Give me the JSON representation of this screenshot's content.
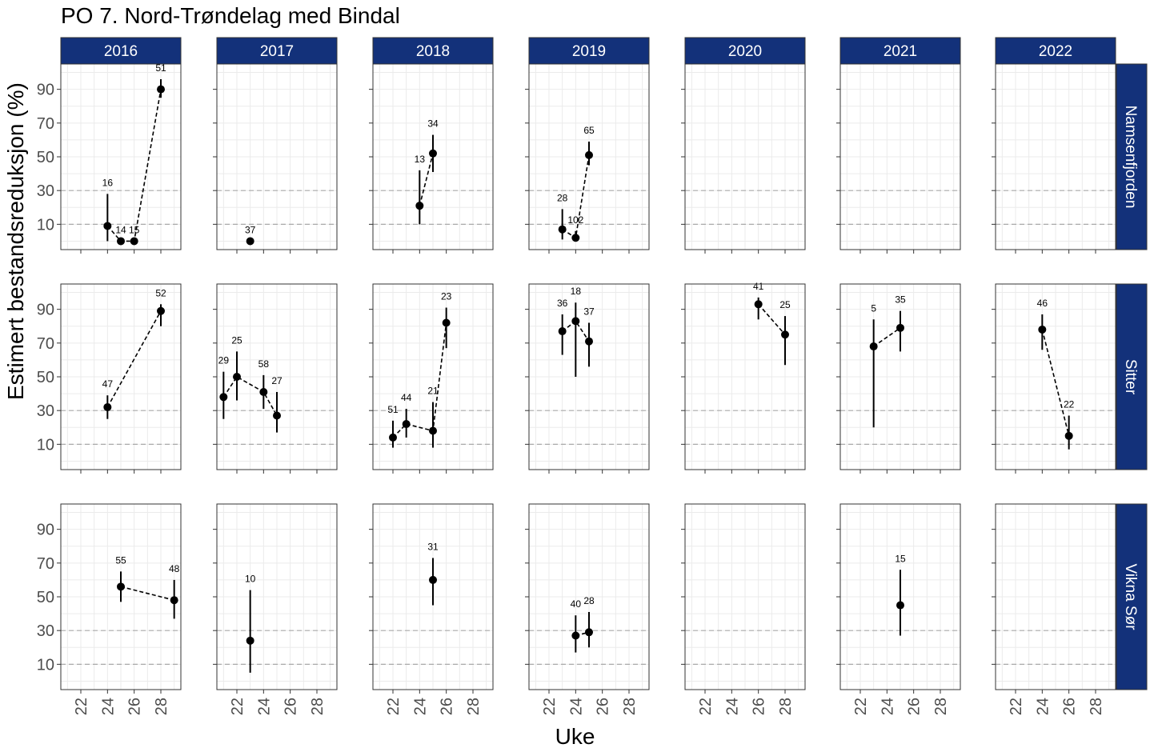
{
  "title": "PO 7. Nord-Trøndelag med Bindal",
  "chart_data": {
    "type": "scatter",
    "title": "PO 7. Nord-Trøndelag med Bindal",
    "xlabel": "Uke",
    "ylabel": "Estimert bestandsreduksjon (%)",
    "x_ticks": [
      22,
      24,
      26,
      28
    ],
    "y_ticks": [
      10,
      30,
      50,
      70,
      90
    ],
    "xlim": [
      20.5,
      29.5
    ],
    "ylim": [
      -5,
      105
    ],
    "reference_lines": [
      10,
      30
    ],
    "grid": true,
    "columns": [
      "2016",
      "2017",
      "2018",
      "2019",
      "2020",
      "2021",
      "2022"
    ],
    "rows": [
      "Namsenfjorden",
      "Sitter",
      "Vikna Sør"
    ],
    "panels": [
      {
        "row": "Namsenfjorden",
        "year": "2016",
        "points": [
          {
            "x": 24,
            "y": 9,
            "lo": 0,
            "hi": 28,
            "n": "16"
          },
          {
            "x": 25,
            "y": 0,
            "lo": 0,
            "hi": 0,
            "n": "14"
          },
          {
            "x": 26,
            "y": 0,
            "lo": 0,
            "hi": 0,
            "n": "15"
          },
          {
            "x": 28,
            "y": 90,
            "lo": 85,
            "hi": 96,
            "n": "51"
          }
        ]
      },
      {
        "row": "Namsenfjorden",
        "year": "2017",
        "points": [
          {
            "x": 23,
            "y": 0,
            "lo": 0,
            "hi": 0,
            "n": "37"
          }
        ]
      },
      {
        "row": "Namsenfjorden",
        "year": "2018",
        "points": [
          {
            "x": 24,
            "y": 21,
            "lo": 10,
            "hi": 42,
            "n": "13"
          },
          {
            "x": 25,
            "y": 52,
            "lo": 41,
            "hi": 63,
            "n": "34"
          }
        ]
      },
      {
        "row": "Namsenfjorden",
        "year": "2019",
        "points": [
          {
            "x": 23,
            "y": 7,
            "lo": 1,
            "hi": 19,
            "n": "28"
          },
          {
            "x": 24,
            "y": 2,
            "lo": 0,
            "hi": 6,
            "n": "102"
          },
          {
            "x": 25,
            "y": 51,
            "lo": 45,
            "hi": 59,
            "n": "65"
          }
        ]
      },
      {
        "row": "Namsenfjorden",
        "year": "2020",
        "points": []
      },
      {
        "row": "Namsenfjorden",
        "year": "2021",
        "points": []
      },
      {
        "row": "Namsenfjorden",
        "year": "2022",
        "points": []
      },
      {
        "row": "Sitter",
        "year": "2016",
        "points": [
          {
            "x": 24,
            "y": 32,
            "lo": 25,
            "hi": 39,
            "n": "47"
          },
          {
            "x": 28,
            "y": 89,
            "lo": 80,
            "hi": 93,
            "n": "52"
          }
        ]
      },
      {
        "row": "Sitter",
        "year": "2017",
        "points": [
          {
            "x": 21,
            "y": 38,
            "lo": 25,
            "hi": 53,
            "n": "29"
          },
          {
            "x": 22,
            "y": 50,
            "lo": 36,
            "hi": 65,
            "n": "25"
          },
          {
            "x": 24,
            "y": 41,
            "lo": 31,
            "hi": 51,
            "n": "58"
          },
          {
            "x": 25,
            "y": 27,
            "lo": 17,
            "hi": 41,
            "n": "27"
          }
        ]
      },
      {
        "row": "Sitter",
        "year": "2018",
        "points": [
          {
            "x": 22,
            "y": 14,
            "lo": 8,
            "hi": 24,
            "n": "51"
          },
          {
            "x": 23,
            "y": 22,
            "lo": 14,
            "hi": 31,
            "n": "44"
          },
          {
            "x": 25,
            "y": 18,
            "lo": 8,
            "hi": 35,
            "n": "21"
          },
          {
            "x": 26,
            "y": 82,
            "lo": 67,
            "hi": 91,
            "n": "23"
          }
        ]
      },
      {
        "row": "Sitter",
        "year": "2019",
        "points": [
          {
            "x": 23,
            "y": 77,
            "lo": 63,
            "hi": 87,
            "n": "36"
          },
          {
            "x": 24,
            "y": 83,
            "lo": 50,
            "hi": 94,
            "n": "18"
          },
          {
            "x": 25,
            "y": 71,
            "lo": 56,
            "hi": 82,
            "n": "37"
          }
        ]
      },
      {
        "row": "Sitter",
        "year": "2020",
        "points": [
          {
            "x": 26,
            "y": 93,
            "lo": 84,
            "hi": 97,
            "n": "41"
          },
          {
            "x": 28,
            "y": 75,
            "lo": 57,
            "hi": 86,
            "n": "25"
          }
        ]
      },
      {
        "row": "Sitter",
        "year": "2021",
        "points": [
          {
            "x": 23,
            "y": 68,
            "lo": 20,
            "hi": 84,
            "n": "5"
          },
          {
            "x": 25,
            "y": 79,
            "lo": 65,
            "hi": 89,
            "n": "35"
          }
        ]
      },
      {
        "row": "Sitter",
        "year": "2022",
        "points": [
          {
            "x": 24,
            "y": 78,
            "lo": 66,
            "hi": 87,
            "n": "46"
          },
          {
            "x": 26,
            "y": 15,
            "lo": 7,
            "hi": 27,
            "n": "22"
          }
        ]
      },
      {
        "row": "Vikna Sør",
        "year": "2016",
        "points": [
          {
            "x": 25,
            "y": 56,
            "lo": 47,
            "hi": 65,
            "n": "55"
          },
          {
            "x": 29,
            "y": 48,
            "lo": 37,
            "hi": 60,
            "n": "48"
          }
        ]
      },
      {
        "row": "Vikna Sør",
        "year": "2017",
        "points": [
          {
            "x": 23,
            "y": 24,
            "lo": 5,
            "hi": 54,
            "n": "10"
          }
        ]
      },
      {
        "row": "Vikna Sør",
        "year": "2018",
        "points": [
          {
            "x": 25,
            "y": 60,
            "lo": 45,
            "hi": 73,
            "n": "31"
          }
        ]
      },
      {
        "row": "Vikna Sør",
        "year": "2019",
        "points": [
          {
            "x": 24,
            "y": 27,
            "lo": 17,
            "hi": 39,
            "n": "40"
          },
          {
            "x": 25,
            "y": 29,
            "lo": 20,
            "hi": 41,
            "n": "28"
          }
        ]
      },
      {
        "row": "Vikna Sør",
        "year": "2020",
        "points": []
      },
      {
        "row": "Vikna Sør",
        "year": "2021",
        "points": [
          {
            "x": 25,
            "y": 45,
            "lo": 27,
            "hi": 66,
            "n": "15"
          }
        ]
      },
      {
        "row": "Vikna Sør",
        "year": "2022",
        "points": []
      }
    ]
  },
  "colors": {
    "strip": "#13317a",
    "strip_text": "#ffffff",
    "gridline": "#ebebeb",
    "refline": "#a9a9a9",
    "point": "#000000"
  }
}
